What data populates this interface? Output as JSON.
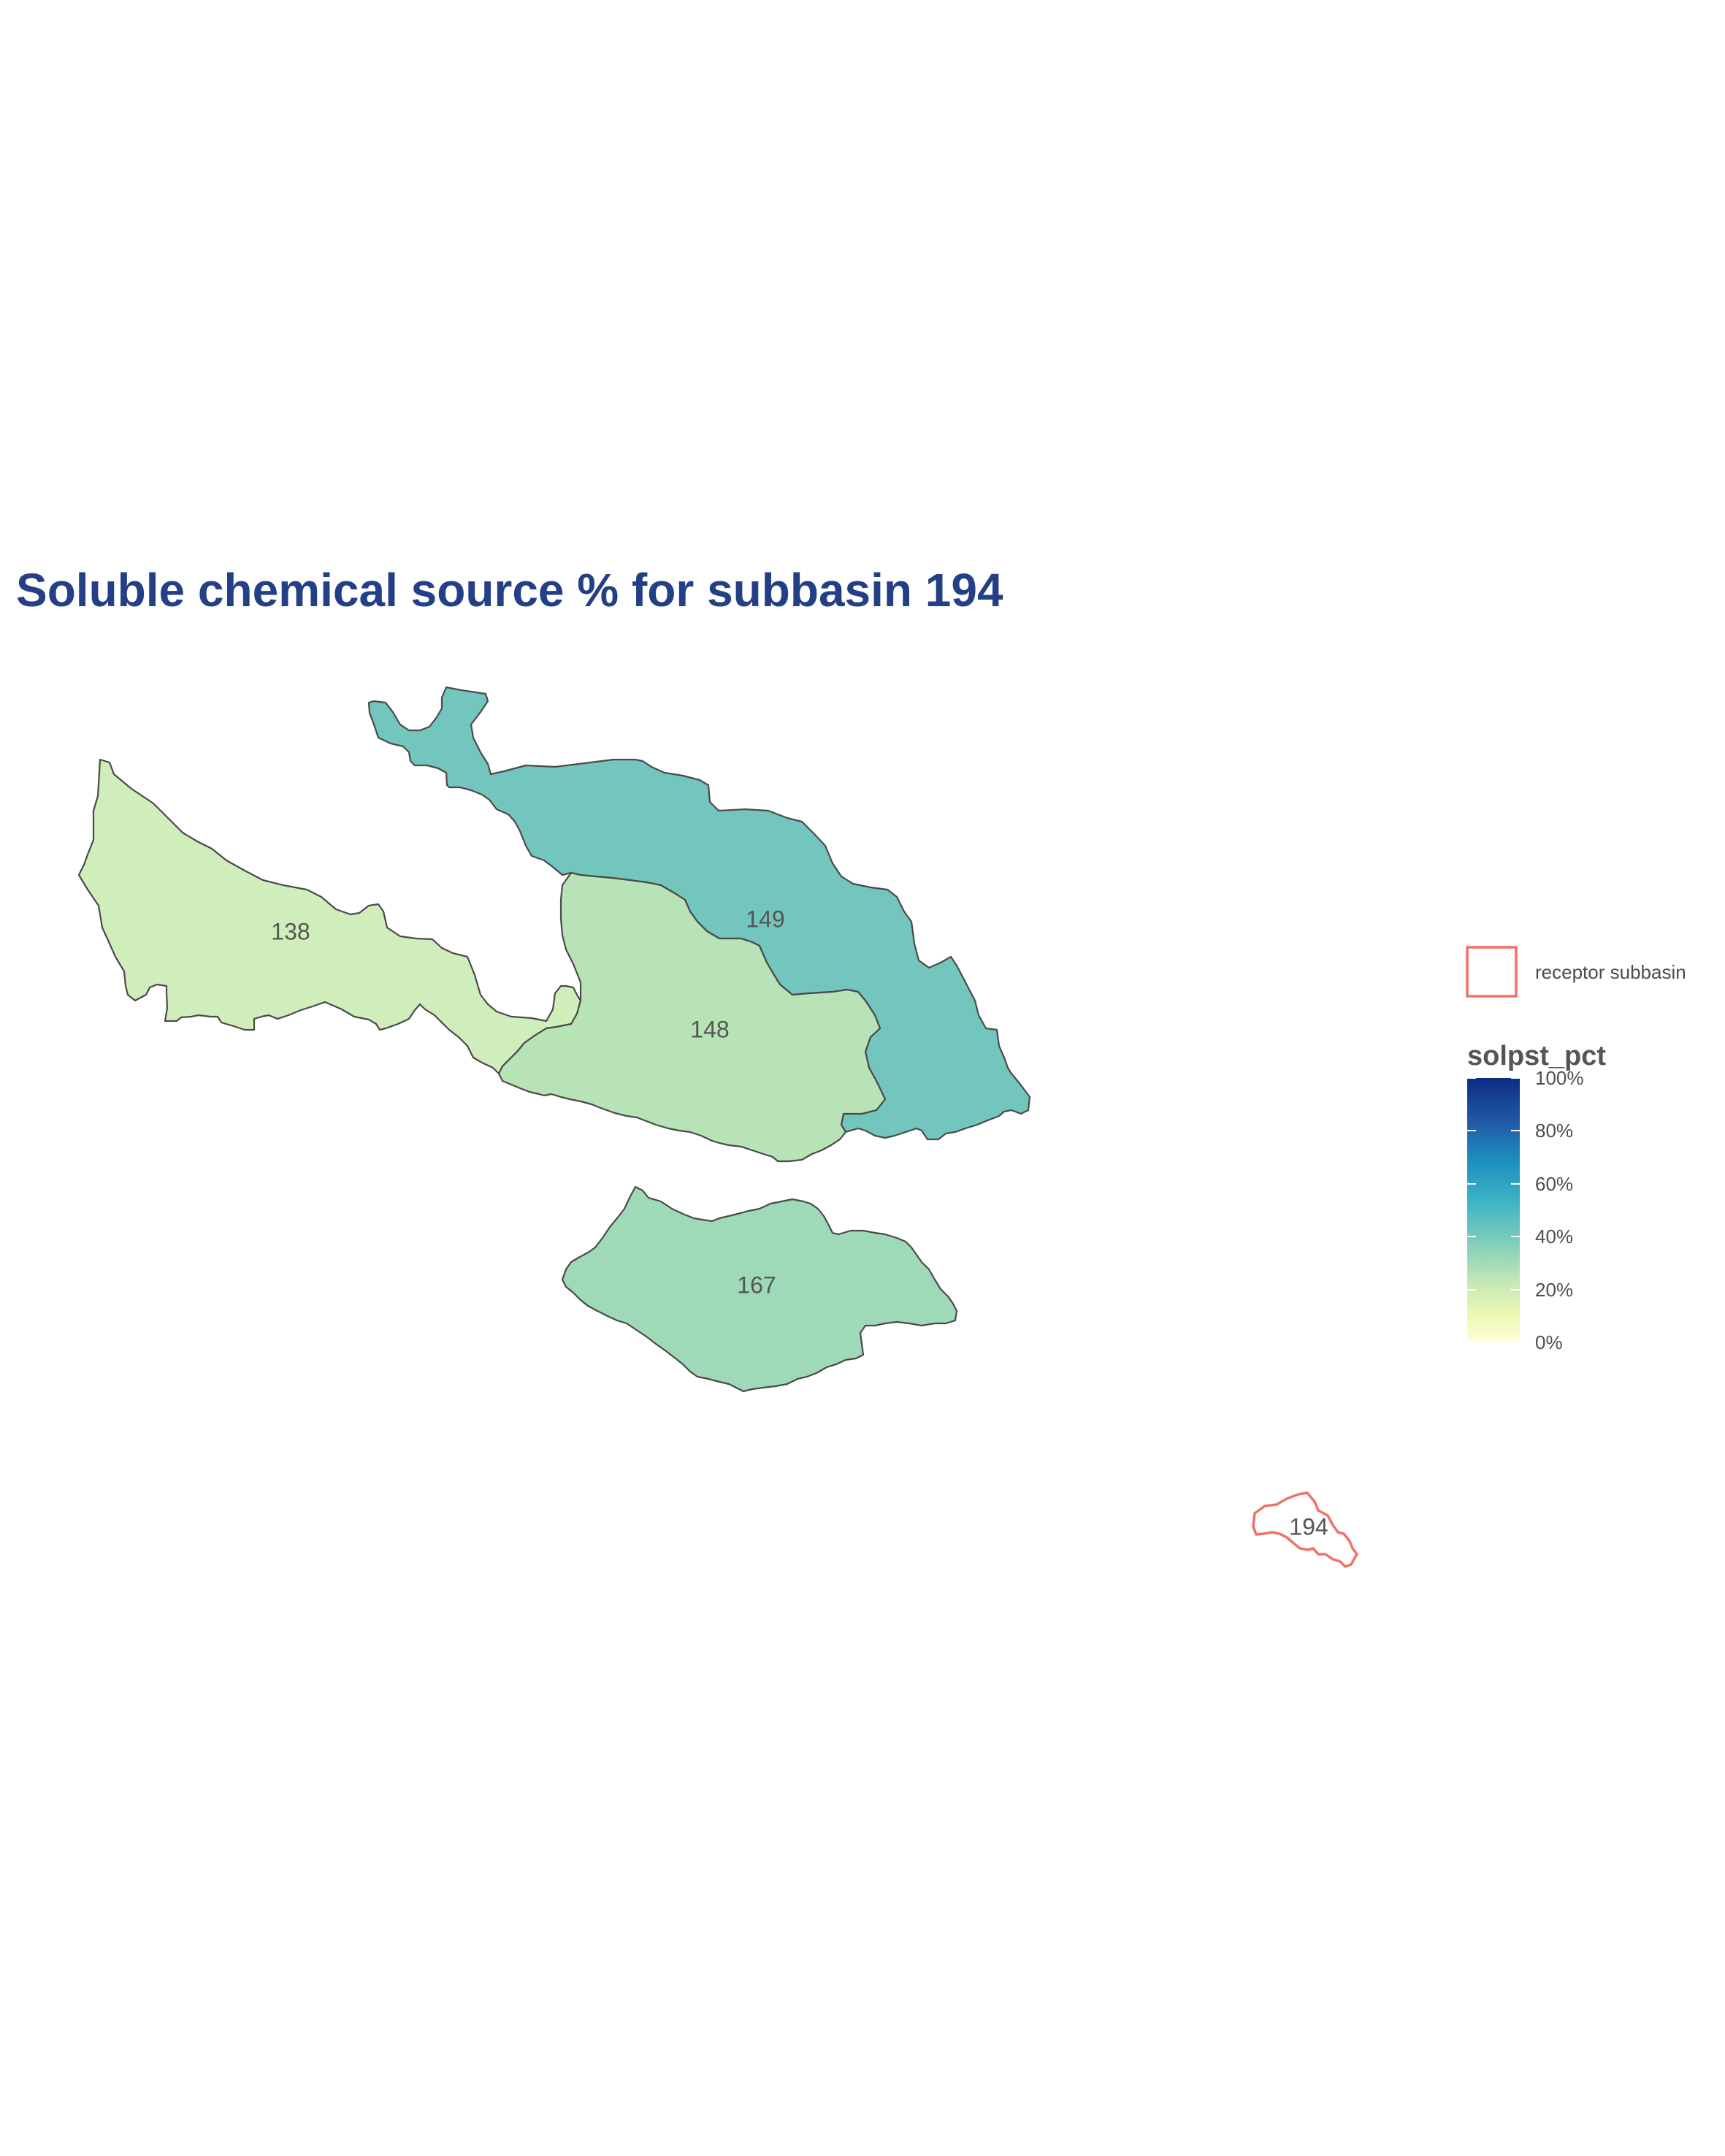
{
  "title": "Soluble chemical source % for subbasin 194",
  "title_color": "#233f86",
  "subbasins": [
    {
      "id": "138",
      "label": "138",
      "solpst_pct": 13,
      "fill": "#d0eebb"
    },
    {
      "id": "148",
      "label": "148",
      "solpst_pct": 20,
      "fill": "#b7e3b6"
    },
    {
      "id": "149",
      "label": "149",
      "solpst_pct": 38,
      "fill": "#72c6bd"
    },
    {
      "id": "167",
      "label": "167",
      "solpst_pct": 24,
      "fill": "#9fdab8"
    },
    {
      "id": "194",
      "label": "194",
      "receptor": true
    }
  ],
  "legend": {
    "receptor_label": "receptor subbasin",
    "receptor_color": "#f07167",
    "scale_title": "solpst_pct",
    "scale_labels": [
      "100%",
      "80%",
      "60%",
      "40%",
      "20%",
      "0%"
    ],
    "scale_colors": [
      "#ffffd9",
      "#edf8b1",
      "#c7e9b4",
      "#7fcdbb",
      "#41b6c4",
      "#1d91c0",
      "#225ea8",
      "#0c2c84"
    ]
  }
}
